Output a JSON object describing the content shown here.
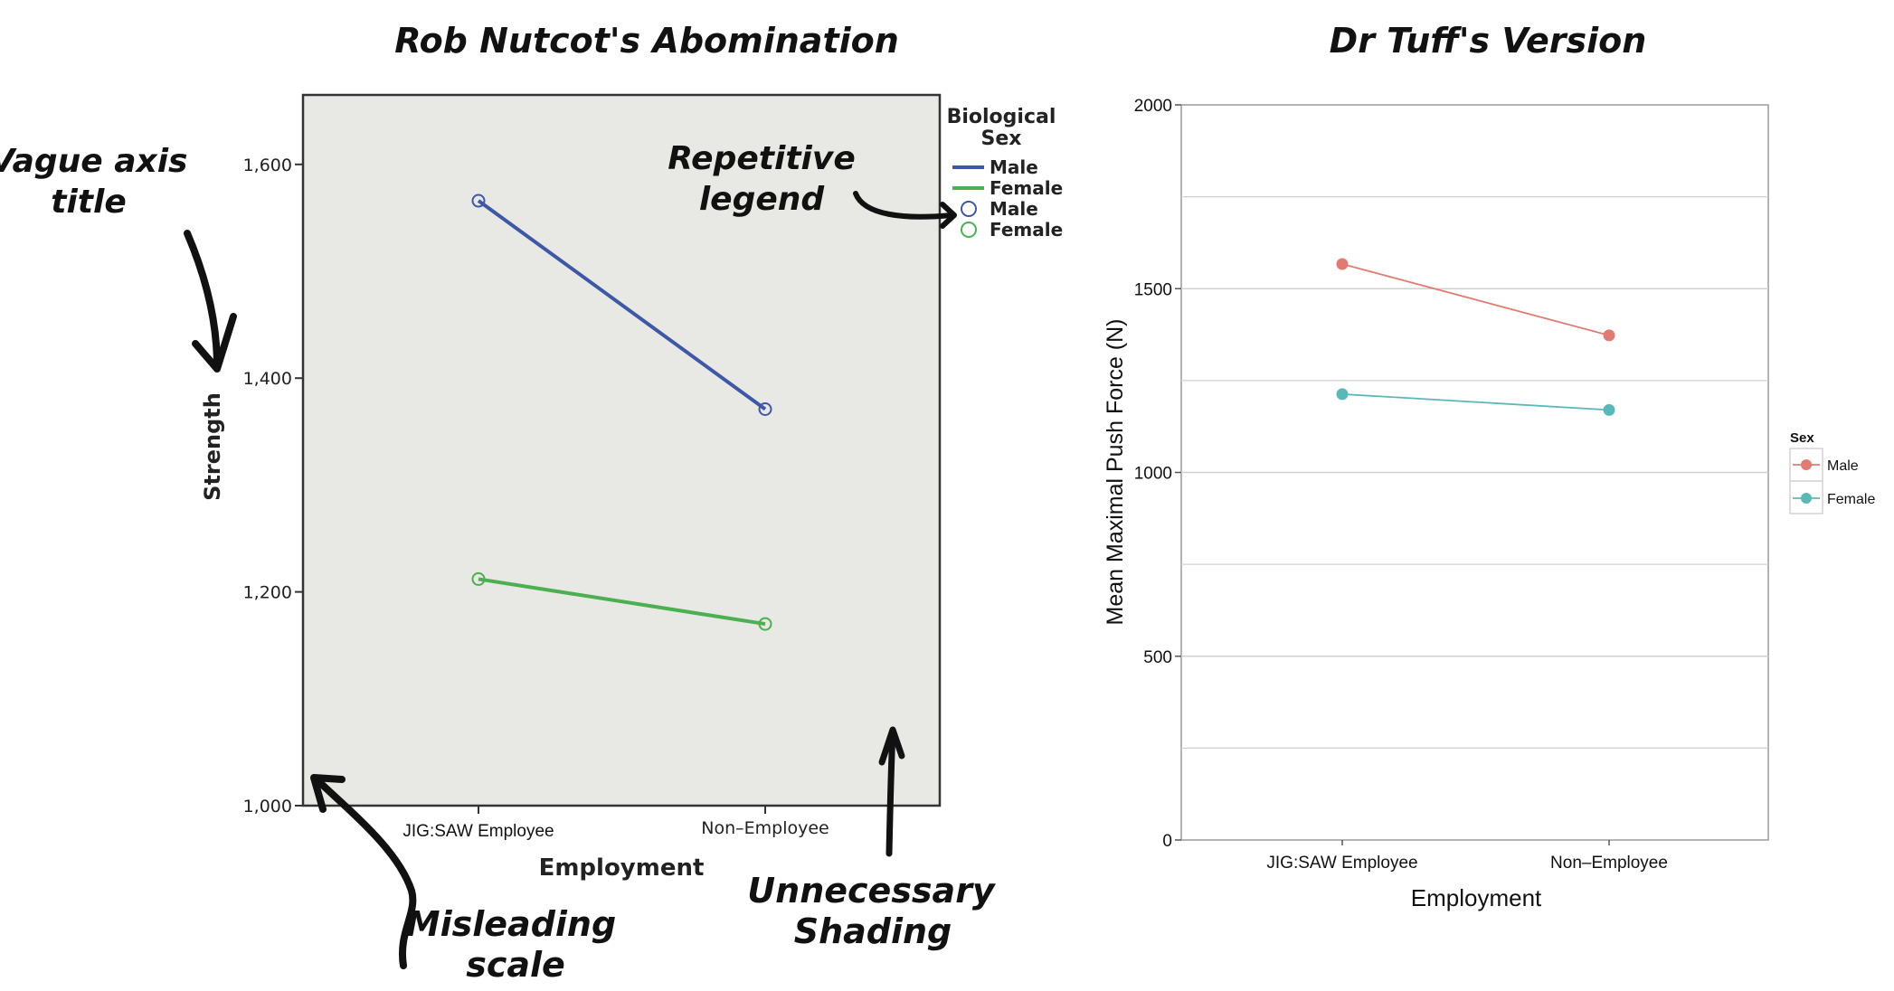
{
  "titles": {
    "left": "Rob Nutcot's Abomination",
    "right": "Dr Tuff's Version"
  },
  "annotations": {
    "vague_axis": [
      "Vague axis",
      "title"
    ],
    "repetitive_legend": [
      "Repetitive",
      "legend"
    ],
    "misleading_scale": [
      "Misleading",
      "scale"
    ],
    "unnecessary_shading": [
      "Unnecessary",
      "Shading"
    ]
  },
  "colors": {
    "left_male": "#3f58a6",
    "left_female": "#4caf50",
    "left_plot_bg": "#e8e8e4",
    "right_male": "#e07b72",
    "right_female": "#5bb8b8",
    "grid": "#d0d0d0"
  },
  "chart_data": [
    {
      "type": "line",
      "title": "Rob Nutcot's Abomination",
      "xlabel": "Employment",
      "ylabel": "Strength",
      "categories": [
        "JIG:SAW Employee",
        "Non–Employee"
      ],
      "ylim": [
        1000,
        1665
      ],
      "yticks": [
        1000,
        1200,
        1400,
        1600
      ],
      "ytick_labels": [
        "1,000",
        "1,200",
        "1,400",
        "1,600"
      ],
      "grid": false,
      "background": "shaded",
      "legend": {
        "title": [
          "Biological",
          "Sex"
        ],
        "placement": "right",
        "entries": [
          {
            "label": "Male",
            "kind": "line",
            "series": 0
          },
          {
            "label": "Female",
            "kind": "line",
            "series": 1
          },
          {
            "label": "Male",
            "kind": "marker",
            "series": 0
          },
          {
            "label": "Female",
            "kind": "marker",
            "series": 1
          }
        ]
      },
      "series": [
        {
          "name": "Male",
          "values": [
            1566,
            1371
          ]
        },
        {
          "name": "Female",
          "values": [
            1212,
            1170
          ]
        }
      ]
    },
    {
      "type": "line",
      "title": "Dr Tuff's Version",
      "xlabel": "Employment",
      "ylabel": "Mean Maximal Push Force (N)",
      "categories": [
        "JIG:SAW Employee",
        "Non–Employee"
      ],
      "ylim": [
        0,
        2000
      ],
      "yticks": [
        0,
        500,
        1000,
        1500,
        2000
      ],
      "ytick_labels": [
        "0",
        "500",
        "1000",
        "1500",
        "2000"
      ],
      "minor_gridlines": [
        250,
        750,
        1250,
        1750
      ],
      "grid": true,
      "legend": {
        "title": "Sex",
        "placement": "right",
        "entries": [
          {
            "label": "Male",
            "series": 0
          },
          {
            "label": "Female",
            "series": 1
          }
        ]
      },
      "series": [
        {
          "name": "Male",
          "values": [
            1567,
            1373
          ]
        },
        {
          "name": "Female",
          "values": [
            1213,
            1170
          ]
        }
      ]
    }
  ]
}
